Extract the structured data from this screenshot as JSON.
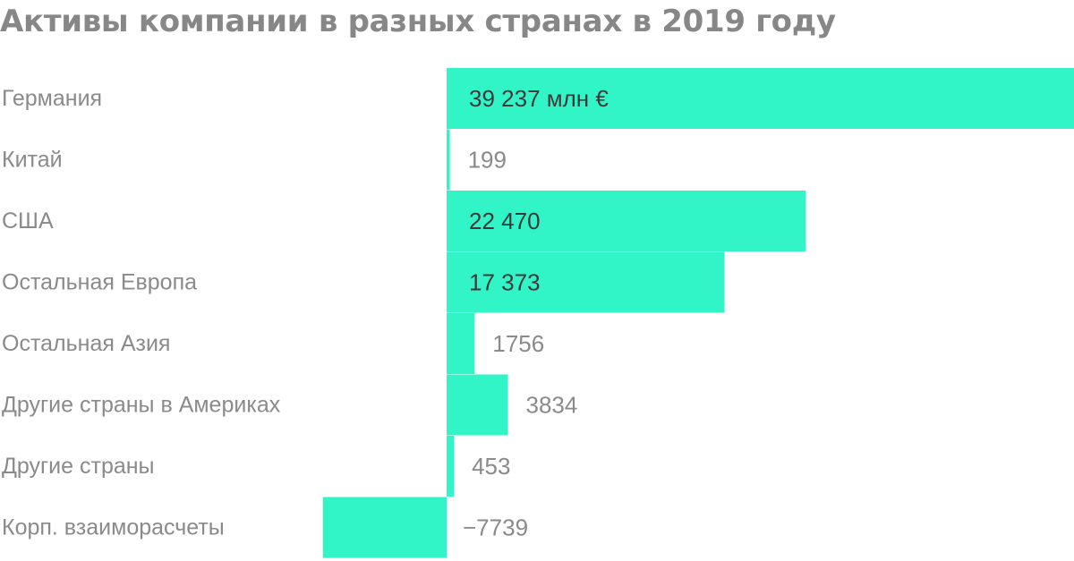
{
  "colors": {
    "bar": "#32f5c7",
    "title": "#878787",
    "label": "#8a8a8a",
    "value_inside": "#3a3a3a"
  },
  "chart_data": {
    "type": "bar",
    "orientation": "horizontal",
    "title": "Активы компании в разных странах в 2019 году",
    "unit": "млн €",
    "categories": [
      "Германия",
      "Китай",
      "США",
      "Остальная Европа",
      "Остальная Азия",
      "Другие страны в Америках",
      "Другие страны",
      "Корп. взаиморасчеты"
    ],
    "values": [
      39237,
      199,
      22470,
      17373,
      1756,
      3834,
      453,
      -7739
    ],
    "value_labels": [
      "39 237 млн €",
      "199",
      "22 470",
      "17 373",
      "1756",
      "3834",
      "453",
      "−7739"
    ],
    "xlim": [
      -7739,
      39237
    ],
    "grid": false,
    "legend": "none"
  }
}
